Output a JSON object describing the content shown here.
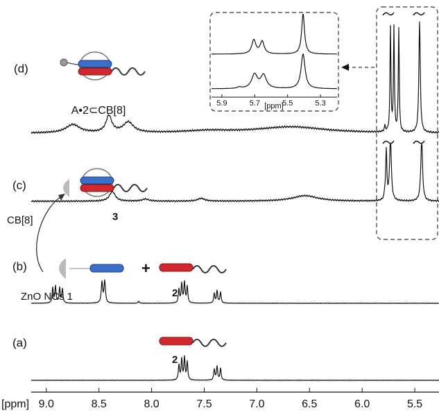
{
  "panel_labels": [
    "(a)",
    "(b)",
    "(c)",
    "(d)"
  ],
  "annotations": {
    "complex": "A•2⊂CB[8]",
    "cb8": "CB[8]",
    "zno": "ZnO NCs 1",
    "peak_3": "3",
    "peak_2_b": "2",
    "peak_2_a": "2",
    "plus": "+"
  },
  "x_axis": {
    "label": "[ppm]",
    "xlim": [
      9.44,
      5.27
    ],
    "xticks": [
      {
        "value": 9,
        "label": "9.0"
      },
      8.5,
      {
        "value": 8,
        "label": "8.0"
      },
      7.5,
      {
        "value": 7,
        "label": "7.0"
      },
      6.5,
      {
        "value": 6,
        "label": "6.0"
      },
      5.5
    ]
  },
  "inset": {
    "x_label": "[ppm]",
    "xlim": [
      5.963,
      5.199
    ],
    "xticks": [
      5.9,
      5.7,
      5.5,
      5.3
    ]
  }
}
